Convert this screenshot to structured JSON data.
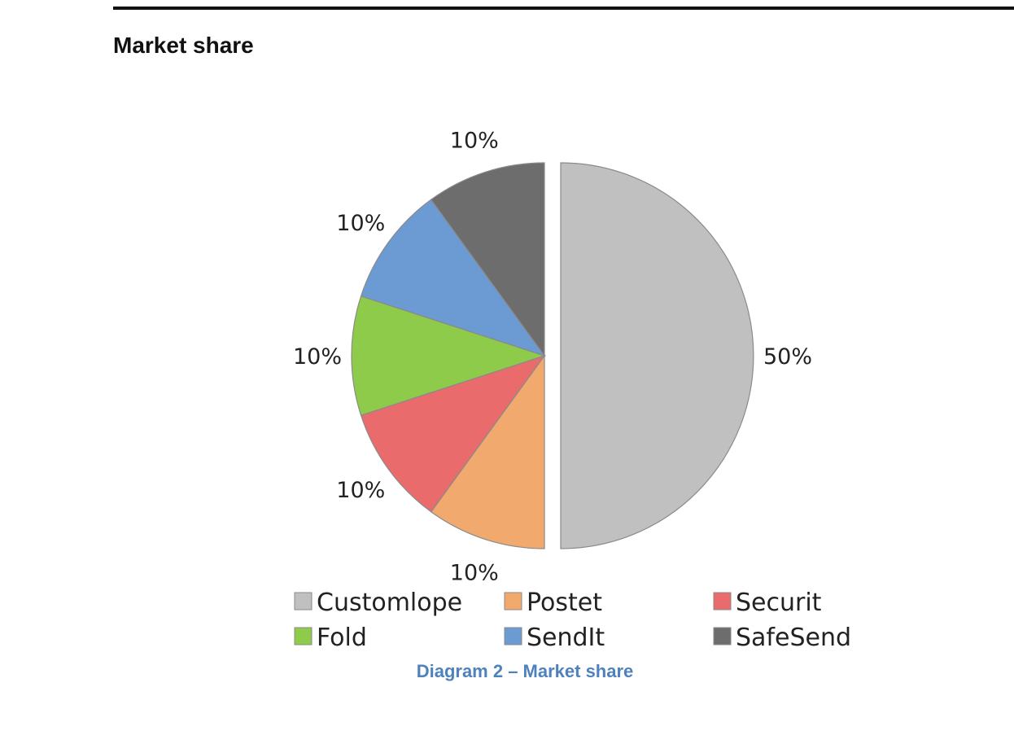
{
  "page": {
    "heading": "Market share",
    "caption": "Diagram 2 – Market share"
  },
  "chart_data": {
    "type": "pie",
    "title": "",
    "categories": [
      "Customlope",
      "Postet",
      "Securit",
      "Fold",
      "SendIt",
      "SafeSend"
    ],
    "values": [
      50,
      10,
      10,
      10,
      10,
      10
    ],
    "data_labels": [
      "50%",
      "10%",
      "10%",
      "10%",
      "10%",
      "10%"
    ],
    "colors": [
      "#c0c0c0",
      "#f2a96e",
      "#ea6b6b",
      "#8ecb4a",
      "#6b9bd2",
      "#6d6d6d"
    ],
    "exploded": [
      true,
      false,
      false,
      false,
      false,
      false
    ],
    "legend": {
      "position": "bottom",
      "entries": [
        "Customlope",
        "Postet",
        "Securit",
        "Fold",
        "SendIt",
        "SafeSend"
      ]
    }
  }
}
